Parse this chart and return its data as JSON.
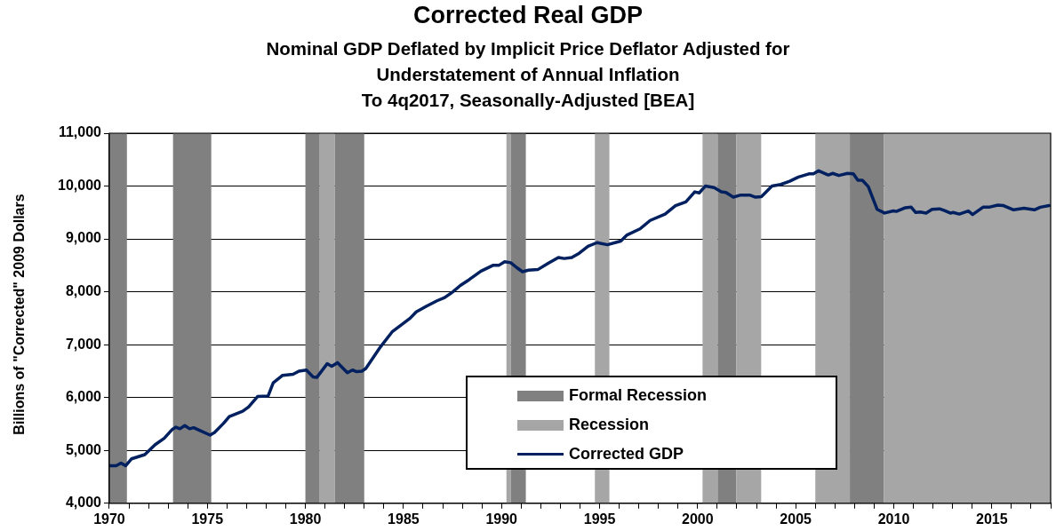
{
  "chart_data": {
    "type": "line",
    "title": "Corrected Real GDP",
    "subtitle": "Nominal GDP Deflated by Implicit Price Deflator Adjusted for\nUnderstatement of Annual Inflation\nTo 4q2017, Seasonally-Adjusted [BEA]",
    "ylabel": "Billions of \"Corrected\" 2009 Dollars",
    "series": [
      {
        "name": "Corrected GDP",
        "color": "#002060",
        "x": [
          1970.0,
          1970.35,
          1970.6,
          1970.83,
          1971.13,
          1971.81,
          1972.34,
          1972.8,
          1973.22,
          1973.4,
          1973.6,
          1973.85,
          1974.1,
          1974.3,
          1974.6,
          1975.14,
          1975.37,
          1975.82,
          1976.12,
          1976.8,
          1977.1,
          1977.56,
          1978.1,
          1978.36,
          1978.84,
          1979.37,
          1979.67,
          1980.05,
          1980.39,
          1980.58,
          1981.11,
          1981.34,
          1981.64,
          1982.14,
          1982.4,
          1982.62,
          1982.88,
          1983.08,
          1983.83,
          1984.44,
          1985.34,
          1985.65,
          1986.18,
          1986.71,
          1987.1,
          1987.52,
          1987.9,
          1988.35,
          1988.95,
          1989.56,
          1989.86,
          1990.16,
          1990.47,
          1990.77,
          1991.07,
          1991.37,
          1991.85,
          1992.38,
          1992.9,
          1993.2,
          1993.58,
          1993.96,
          1994.41,
          1994.87,
          1995.4,
          1996.08,
          1996.38,
          1997.06,
          1997.58,
          1998.34,
          1998.87,
          1999.4,
          1999.85,
          2000.08,
          2000.39,
          2000.84,
          2001.21,
          2001.44,
          2001.82,
          2002.2,
          2002.65,
          2002.95,
          2003.25,
          2003.79,
          2004.24,
          2004.69,
          2005.14,
          2005.67,
          2005.9,
          2006.17,
          2006.66,
          2006.89,
          2007.2,
          2007.64,
          2007.94,
          2008.17,
          2008.4,
          2008.7,
          2009.15,
          2009.53,
          2009.98,
          2010.13,
          2010.59,
          2010.89,
          2011.12,
          2011.35,
          2011.65,
          2011.95,
          2012.33,
          2012.56,
          2012.88,
          2013.03,
          2013.34,
          2013.8,
          2014.02,
          2014.55,
          2014.85,
          2015.3,
          2015.6,
          2016.11,
          2016.64,
          2017.17,
          2017.47,
          2017.92
        ],
        "values": [
          4710,
          4710,
          4760,
          4710,
          4840,
          4920,
          5110,
          5230,
          5400,
          5440,
          5410,
          5470,
          5410,
          5430,
          5380,
          5290,
          5340,
          5510,
          5640,
          5740,
          5820,
          6020,
          6030,
          6280,
          6420,
          6440,
          6500,
          6520,
          6390,
          6380,
          6640,
          6590,
          6660,
          6470,
          6520,
          6490,
          6500,
          6550,
          6960,
          7250,
          7500,
          7620,
          7730,
          7830,
          7890,
          8000,
          8120,
          8230,
          8390,
          8500,
          8500,
          8570,
          8550,
          8460,
          8380,
          8410,
          8420,
          8540,
          8650,
          8630,
          8650,
          8730,
          8860,
          8930,
          8890,
          8960,
          9070,
          9190,
          9350,
          9470,
          9630,
          9700,
          9890,
          9870,
          10000,
          9970,
          9890,
          9880,
          9790,
          9830,
          9830,
          9790,
          9800,
          10000,
          10030,
          10090,
          10170,
          10230,
          10230,
          10290,
          10210,
          10240,
          10200,
          10240,
          10230,
          10110,
          10110,
          9990,
          9560,
          9490,
          9530,
          9520,
          9590,
          9600,
          9500,
          9510,
          9490,
          9560,
          9570,
          9540,
          9490,
          9500,
          9470,
          9530,
          9460,
          9600,
          9600,
          9640,
          9630,
          9550,
          9580,
          9550,
          9600,
          9630
        ]
      }
    ],
    "xlim": [
      1970,
      2018
    ],
    "xticks": [
      1970,
      {
        "value": 1971,
        "label": null
      },
      {
        "value": 1972,
        "label": null
      },
      {
        "value": 1973,
        "label": null
      },
      {
        "value": 1974,
        "label": null
      },
      1975,
      {
        "value": 1976,
        "label": null
      },
      {
        "value": 1977,
        "label": null
      },
      {
        "value": 1978,
        "label": null
      },
      {
        "value": 1979,
        "label": null
      },
      1980,
      {
        "value": 1981,
        "label": null
      },
      {
        "value": 1982,
        "label": null
      },
      {
        "value": 1983,
        "label": null
      },
      {
        "value": 1984,
        "label": null
      },
      1985,
      {
        "value": 1986,
        "label": null
      },
      {
        "value": 1987,
        "label": null
      },
      {
        "value": 1988,
        "label": null
      },
      {
        "value": 1989,
        "label": null
      },
      1990,
      {
        "value": 1991,
        "label": null
      },
      {
        "value": 1992,
        "label": null
      },
      {
        "value": 1993,
        "label": null
      },
      {
        "value": 1994,
        "label": null
      },
      1995,
      {
        "value": 1996,
        "label": null
      },
      {
        "value": 1997,
        "label": null
      },
      {
        "value": 1998,
        "label": null
      },
      {
        "value": 1999,
        "label": null
      },
      2000,
      {
        "value": 2001,
        "label": null
      },
      {
        "value": 2002,
        "label": null
      },
      {
        "value": 2003,
        "label": null
      },
      {
        "value": 2004,
        "label": null
      },
      2005,
      {
        "value": 2006,
        "label": null
      },
      {
        "value": 2007,
        "label": null
      },
      {
        "value": 2008,
        "label": null
      },
      {
        "value": 2009,
        "label": null
      },
      2010,
      {
        "value": 2011,
        "label": null
      },
      {
        "value": 2012,
        "label": null
      },
      {
        "value": 2013,
        "label": null
      },
      {
        "value": 2014,
        "label": null
      },
      2015,
      {
        "value": 2016,
        "label": null
      },
      {
        "value": 2017,
        "label": null
      },
      {
        "value": 2018,
        "label": null
      }
    ],
    "ylim": [
      4000,
      11000
    ],
    "yticks": [
      {
        "value": 4000,
        "label": "4,000"
      },
      {
        "value": 5000,
        "label": "5,000"
      },
      {
        "value": 6000,
        "label": "6,000"
      },
      {
        "value": 7000,
        "label": "7,000"
      },
      {
        "value": 8000,
        "label": "8,000"
      },
      {
        "value": 9000,
        "label": "9,000"
      },
      {
        "value": 10000,
        "label": "10,000"
      },
      {
        "value": 11000,
        "label": "11,000"
      }
    ],
    "bands": [
      {
        "axis": "x",
        "from": 1970,
        "to": 1970.9,
        "color": "#808080"
      },
      {
        "axis": "x",
        "from": 1973.25,
        "to": 1975.2,
        "color": "#808080"
      },
      {
        "axis": "x",
        "from": 1980,
        "to": 1980.73,
        "color": "#808080"
      },
      {
        "axis": "x",
        "from": 1980.73,
        "to": 1981.5,
        "color": "#a6a6a6"
      },
      {
        "axis": "x",
        "from": 1981.5,
        "to": 1983,
        "color": "#808080"
      },
      {
        "axis": "x",
        "from": 1990.25,
        "to": 1990.48,
        "color": "#a6a6a6"
      },
      {
        "axis": "x",
        "from": 1990.48,
        "to": 1991.24,
        "color": "#808080"
      },
      {
        "axis": "x",
        "from": 1994.76,
        "to": 1995.5,
        "color": "#a6a6a6"
      },
      {
        "axis": "x",
        "from": 2000.25,
        "to": 2001.02,
        "color": "#a6a6a6"
      },
      {
        "axis": "x",
        "from": 2001.02,
        "to": 2001.97,
        "color": "#808080"
      },
      {
        "axis": "x",
        "from": 2001.97,
        "to": 2003.24,
        "color": "#a6a6a6"
      },
      {
        "axis": "x",
        "from": 2006,
        "to": 2007.76,
        "color": "#a6a6a6"
      },
      {
        "axis": "x",
        "from": 2007.76,
        "to": 2009.5,
        "color": "#808080"
      },
      {
        "axis": "x",
        "from": 2009.5,
        "to": 2018,
        "color": "#a6a6a6"
      }
    ],
    "annotations": [
      "Formal Recession",
      "Recession"
    ],
    "grid": "y",
    "legend": "bottom",
    "marker": "none",
    "line_style": "solid"
  }
}
